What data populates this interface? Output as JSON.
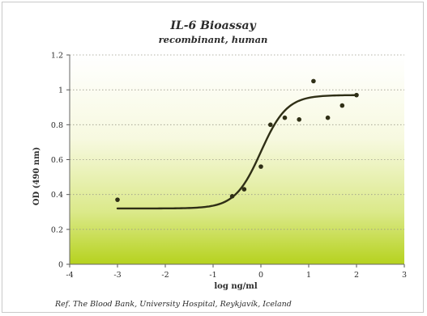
{
  "chart_data": {
    "type": "scatter",
    "title": "IL-6 Bioassay",
    "subtitle": "recombinant, human",
    "xlabel": "log ng/ml",
    "ylabel": "OD (490 nm)",
    "xlim": [
      -4,
      3
    ],
    "ylim": [
      0,
      1.2
    ],
    "xticks": [
      "-4",
      "-3",
      "-2",
      "-1",
      "0",
      "1",
      "2",
      "3"
    ],
    "yticks": [
      "0",
      "0.2",
      "0.4",
      "0.6",
      "0.8",
      "1",
      "1.2"
    ],
    "grid": "horizontal dotted",
    "points": {
      "x": [
        -3.0,
        -0.6,
        -0.35,
        0.0,
        0.2,
        0.5,
        0.8,
        1.1,
        1.4,
        1.7,
        2.0
      ],
      "y": [
        0.37,
        0.39,
        0.43,
        0.56,
        0.8,
        0.84,
        0.83,
        1.05,
        0.84,
        0.91,
        0.97
      ]
    },
    "fit_curve": {
      "model": "4-parameter logistic",
      "bottom": 0.32,
      "top": 0.97,
      "ec50_log": 0.0,
      "hill_slope": 1.6,
      "x_range": [
        -3.0,
        2.0
      ]
    },
    "colors": {
      "points": "#2f2f16",
      "curve": "#2f2f16",
      "plot_top": "#ffffff",
      "plot_bottom": "#b6d21e"
    }
  },
  "reference": "Ref. The Blood Bank, University Hospital, Reykjavík, Iceland"
}
